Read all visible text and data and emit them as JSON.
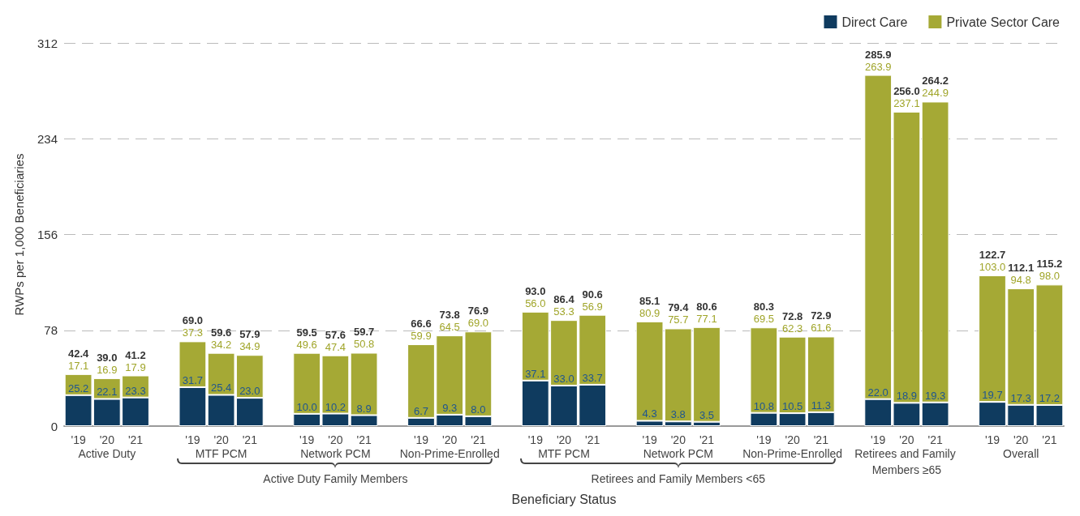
{
  "chart_data": {
    "type": "bar",
    "stacked": true,
    "xlabel": "Beneficiary Status",
    "ylabel": "RWPs per 1,000 Beneficiaries",
    "categories": [
      "'19",
      "'20",
      "'21",
      null,
      "'19",
      "'20",
      "'21",
      null,
      "'19",
      "'20",
      "'21",
      null,
      "'19",
      "'20",
      "'21",
      null,
      "'19",
      "'20",
      "'21",
      null,
      "'19",
      "'20",
      "'21",
      null,
      "'19",
      "'20",
      "'21",
      null,
      "'19",
      "'20",
      "'21",
      null,
      "'19",
      "'20",
      "'21"
    ],
    "series": [
      {
        "name": "Direct Care",
        "color": "#0f3b5f",
        "values": [
          25.2,
          22.1,
          23.3,
          null,
          31.7,
          25.4,
          23.0,
          null,
          10.0,
          10.2,
          8.9,
          null,
          6.7,
          9.3,
          8.0,
          null,
          37.1,
          33.0,
          33.7,
          null,
          4.3,
          3.8,
          3.5,
          null,
          10.8,
          10.5,
          11.3,
          null,
          22.0,
          18.9,
          19.3,
          null,
          19.7,
          17.3,
          17.2
        ],
        "value_labels": [
          "25.2",
          "22.1",
          "23.3",
          null,
          "31.7",
          "25.4",
          "23.0",
          null,
          "10.0",
          "10.2",
          "8.9",
          null,
          "6.7",
          "9.3",
          "8.0",
          null,
          "37.1",
          "33.0",
          "33.7",
          null,
          "4.3",
          "3.8",
          "3.5",
          null,
          "10.8",
          "10.5",
          "11.3",
          null,
          "22.0",
          "18.9",
          "19.3",
          null,
          "19.7",
          "17.3",
          "17.2"
        ]
      },
      {
        "name": "Private Sector Care",
        "color": "#a5a935",
        "values": [
          17.1,
          16.9,
          17.9,
          null,
          37.3,
          34.2,
          34.9,
          null,
          49.6,
          47.4,
          50.8,
          null,
          59.9,
          64.5,
          69.0,
          null,
          56.0,
          53.3,
          56.9,
          null,
          80.9,
          75.7,
          77.1,
          null,
          69.5,
          62.3,
          61.6,
          null,
          263.9,
          237.1,
          244.9,
          null,
          103.0,
          94.8,
          98.0
        ],
        "value_labels": [
          "17.1",
          "16.9",
          "17.9",
          null,
          "37.3",
          "34.2",
          "34.9",
          null,
          "49.6",
          "47.4",
          "50.8",
          null,
          "59.9",
          "64.5",
          "69.0",
          null,
          "56.0",
          "53.3",
          "56.9",
          null,
          "80.9",
          "75.7",
          "77.1",
          null,
          "69.5",
          "62.3",
          "61.6",
          null,
          "263.9",
          "237.1",
          "244.9",
          null,
          "103.0",
          "94.8",
          "98.0"
        ]
      }
    ],
    "totals": [
      "42.4",
      "39.0",
      "41.2",
      null,
      "69.0",
      "59.6",
      "57.9",
      null,
      "59.5",
      "57.6",
      "59.7",
      null,
      "66.6",
      "73.8",
      "76.9",
      null,
      "93.0",
      "86.4",
      "90.6",
      null,
      "85.1",
      "79.4",
      "80.6",
      null,
      "80.3",
      "72.8",
      "72.9",
      null,
      "285.9",
      "256.0",
      "264.2",
      null,
      "122.7",
      "112.1",
      "115.2"
    ],
    "annotations": [
      "Active Duty",
      "MTF PCM",
      "Network PCM",
      "Non-Prime-Enrolled",
      "MTF PCM",
      "Network PCM",
      "Non-Prime-Enrolled",
      "Retirees and Family Members ≥65",
      "Overall",
      "Active Duty Family Members",
      "Retirees and Family Members <65"
    ],
    "ylim": [
      0,
      312
    ],
    "yticks": [
      0,
      78,
      156,
      234,
      312
    ],
    "grid": "y",
    "legend": "top right"
  }
}
